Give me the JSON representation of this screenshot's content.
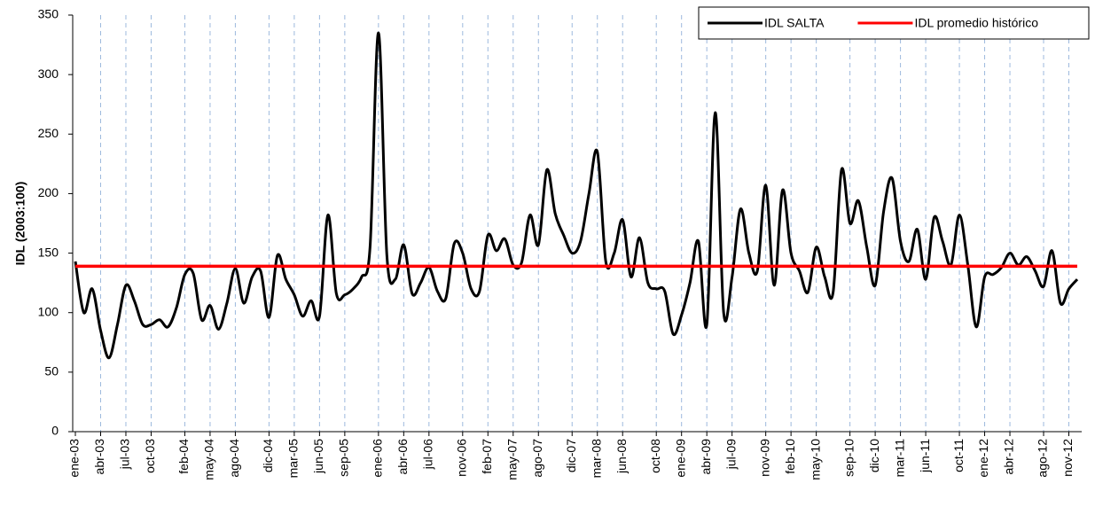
{
  "chart_data": {
    "type": "line",
    "y_label": "IDL (2003:100)",
    "categories": [
      "ene-03",
      null,
      null,
      "abr-03",
      null,
      null,
      "jul-03",
      null,
      null,
      "oct-03",
      null,
      null,
      null,
      "feb-04",
      null,
      null,
      "may-04",
      null,
      null,
      "ago-04",
      null,
      null,
      null,
      "dic-04",
      null,
      null,
      "mar-05",
      null,
      null,
      "jun-05",
      null,
      null,
      "sep-05",
      null,
      null,
      null,
      "ene-06",
      null,
      null,
      "abr-06",
      null,
      null,
      "jul-06",
      null,
      null,
      null,
      "nov-06",
      null,
      null,
      "feb-07",
      null,
      null,
      "may-07",
      null,
      null,
      "ago-07",
      null,
      null,
      null,
      "dic-07",
      null,
      null,
      "mar-08",
      null,
      null,
      "jun-08",
      null,
      null,
      null,
      "oct-08",
      null,
      null,
      "ene-09",
      null,
      null,
      "abr-09",
      null,
      null,
      "jul-09",
      null,
      null,
      null,
      "nov-09",
      null,
      null,
      "feb-10",
      null,
      null,
      "may-10",
      null,
      null,
      null,
      "sep-10",
      null,
      null,
      "dic-10",
      null,
      null,
      "mar-11",
      null,
      null,
      "jun-11",
      null,
      null,
      null,
      "oct-11",
      null,
      null,
      "ene-12",
      null,
      null,
      "abr-12",
      null,
      null,
      null,
      "ago-12",
      null,
      null,
      "nov-12",
      null
    ],
    "series": [
      {
        "name": "IDL SALTA",
        "color": "#000000",
        "values": [
          143,
          100,
          120,
          85,
          62,
          90,
          123,
          110,
          90,
          90,
          94,
          88,
          104,
          132,
          133,
          94,
          106,
          86,
          108,
          137,
          108,
          130,
          135,
          96,
          148,
          128,
          115,
          97,
          110,
          97,
          182,
          116,
          115,
          120,
          130,
          155,
          335,
          148,
          128,
          157,
          116,
          125,
          138,
          118,
          112,
          158,
          150,
          120,
          118,
          165,
          152,
          162,
          140,
          142,
          182,
          157,
          220,
          183,
          165,
          150,
          160,
          200,
          235,
          143,
          150,
          178,
          130,
          163,
          125,
          120,
          118,
          82,
          98,
          125,
          160,
          90,
          268,
          100,
          130,
          187,
          150,
          135,
          207,
          123,
          203,
          150,
          135,
          117,
          155,
          130,
          117,
          220,
          175,
          194,
          155,
          123,
          185,
          213,
          160,
          143,
          170,
          128,
          180,
          160,
          140,
          182,
          140,
          88,
          130,
          132,
          138,
          150,
          140,
          147,
          135,
          122,
          152,
          108,
          120,
          128
        ]
      },
      {
        "name": "IDL promedio histórico",
        "color": "#ff0000",
        "values": [
          139,
          139,
          139,
          139,
          139,
          139,
          139,
          139,
          139,
          139,
          139,
          139,
          139,
          139,
          139,
          139,
          139,
          139,
          139,
          139,
          139,
          139,
          139,
          139,
          139,
          139,
          139,
          139,
          139,
          139,
          139,
          139,
          139,
          139,
          139,
          139,
          139,
          139,
          139,
          139,
          139,
          139,
          139,
          139,
          139,
          139,
          139,
          139,
          139,
          139,
          139,
          139,
          139,
          139,
          139,
          139,
          139,
          139,
          139,
          139,
          139,
          139,
          139,
          139,
          139,
          139,
          139,
          139,
          139,
          139,
          139,
          139,
          139,
          139,
          139,
          139,
          139,
          139,
          139,
          139,
          139,
          139,
          139,
          139,
          139,
          139,
          139,
          139,
          139,
          139,
          139,
          139,
          139,
          139,
          139,
          139,
          139,
          139,
          139,
          139,
          139,
          139,
          139,
          139,
          139,
          139,
          139,
          139,
          139,
          139,
          139,
          139,
          139,
          139,
          139,
          139,
          139,
          139,
          139,
          139
        ]
      }
    ],
    "ylim": [
      0,
      350
    ],
    "yticks": [
      0,
      50,
      100,
      150,
      200,
      250,
      300,
      350
    ],
    "grid": "x",
    "legend": "top-right"
  }
}
